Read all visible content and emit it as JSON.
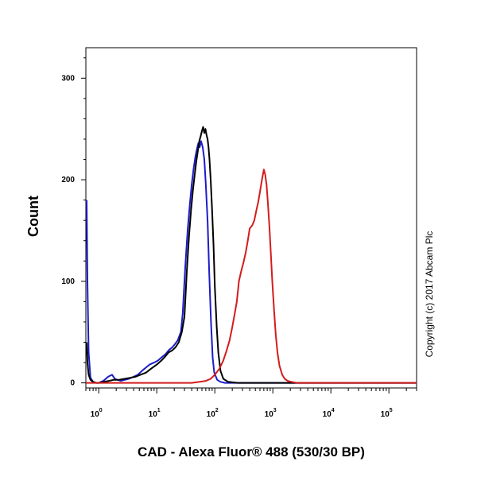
{
  "chart_data": {
    "type": "line",
    "title": "",
    "xlabel": "CAD - Alexa Fluor® 488 (530/30 BP)",
    "ylabel": "Count",
    "x_scale": "log",
    "xlim": [
      0.6,
      300000
    ],
    "ylim": [
      -5,
      330
    ],
    "y_ticks": [
      0,
      100,
      200,
      300
    ],
    "x_ticks": [
      {
        "value": 1,
        "base": "10",
        "exp": "0"
      },
      {
        "value": 10,
        "base": "10",
        "exp": "1"
      },
      {
        "value": 100,
        "base": "10",
        "exp": "2"
      },
      {
        "value": 1000,
        "base": "10",
        "exp": "3"
      },
      {
        "value": 10000,
        "base": "10",
        "exp": "4"
      },
      {
        "value": 100000,
        "base": "10",
        "exp": "5"
      }
    ],
    "grid": false,
    "legend": "none",
    "annotation": "Copyright (c) 2017 Abcam Plc",
    "series": [
      {
        "color": "#1c1cc8",
        "x": [
          0.62,
          0.64,
          0.67,
          0.72,
          0.8,
          0.9,
          1.0,
          1.2,
          1.45,
          1.7,
          1.9,
          2.1,
          2.4,
          2.8,
          3.3,
          4.0,
          4.7,
          5.6,
          6.5,
          7.5,
          9.0,
          10.5,
          12.0,
          14.0,
          16.0,
          18.5,
          20.5,
          23.0,
          26.0,
          28.0,
          31.0,
          34.0,
          37.0,
          40.0,
          43.0,
          46.0,
          49.0,
          52.0,
          55.0,
          58.0,
          62.0,
          66.0,
          70.0,
          75.0,
          80.0,
          86.0,
          92.0,
          98.0,
          110.0,
          125.0,
          150.0,
          200.0,
          400.0,
          1000.0,
          10000.0,
          300000.0
        ],
        "y": [
          180,
          100,
          30,
          5,
          1,
          0,
          0,
          2,
          6,
          8,
          4,
          3,
          2,
          3,
          4,
          6,
          8,
          12,
          15,
          18,
          20,
          22,
          25,
          28,
          32,
          35,
          38,
          42,
          50,
          68,
          115,
          150,
          175,
          195,
          210,
          222,
          230,
          236,
          232,
          238,
          232,
          220,
          195,
          160,
          110,
          60,
          25,
          10,
          3,
          1,
          0,
          0,
          0,
          0,
          0,
          0
        ]
      },
      {
        "color": "#000000",
        "x": [
          0.62,
          0.64,
          0.67,
          0.72,
          0.8,
          0.9,
          1.0,
          1.2,
          1.5,
          1.8,
          2.2,
          2.8,
          3.5,
          4.3,
          5.2,
          6.5,
          8.0,
          10.0,
          12.0,
          14.0,
          16.0,
          18.5,
          21.0,
          24.0,
          27.0,
          30.0,
          33.0,
          36.0,
          39.0,
          42.0,
          45.0,
          48.0,
          51.0,
          54.0,
          57.0,
          60.0,
          63.0,
          66.0,
          69.0,
          72.0,
          75.0,
          78.0,
          81.0,
          85.0,
          90.0,
          95.0,
          100.0,
          108.0,
          115.0,
          125.0,
          140.0,
          170.0,
          250.0,
          1000.0,
          10000.0,
          300000.0
        ],
        "y": [
          40,
          20,
          8,
          3,
          1,
          0,
          0,
          1,
          2,
          3,
          3,
          4,
          5,
          6,
          8,
          10,
          14,
          18,
          22,
          26,
          30,
          32,
          35,
          40,
          50,
          65,
          110,
          145,
          170,
          190,
          205,
          218,
          228,
          238,
          243,
          248,
          252,
          246,
          250,
          244,
          240,
          232,
          220,
          200,
          170,
          135,
          95,
          55,
          30,
          12,
          4,
          1,
          0,
          0,
          0,
          0
        ]
      },
      {
        "color": "#d41c1c",
        "x": [
          0.6,
          1.0,
          10.0,
          40.0,
          55.0,
          70.0,
          85.0,
          100.0,
          120.0,
          140.0,
          160.0,
          180.0,
          200.0,
          220.0,
          240.0,
          260.0,
          285.0,
          310.0,
          340.0,
          370.0,
          400.0,
          440.0,
          480.0,
          520.0,
          560.0,
          600.0,
          650.0,
          700.0,
          740.0,
          780.0,
          820.0,
          870.0,
          920.0,
          980.0,
          1050.0,
          1120.0,
          1200.0,
          1300.0,
          1450.0,
          1600.0,
          1800.0,
          2100.0,
          2600.0,
          3500.0,
          10000.0,
          300000.0
        ],
        "y": [
          0,
          0,
          0,
          0,
          1,
          2,
          4,
          8,
          14,
          22,
          32,
          42,
          55,
          68,
          80,
          100,
          110,
          118,
          128,
          140,
          152,
          155,
          160,
          170,
          178,
          188,
          200,
          210,
          205,
          195,
          178,
          155,
          130,
          100,
          72,
          48,
          30,
          17,
          8,
          4,
          2,
          1,
          0,
          0,
          0,
          0
        ]
      }
    ]
  }
}
